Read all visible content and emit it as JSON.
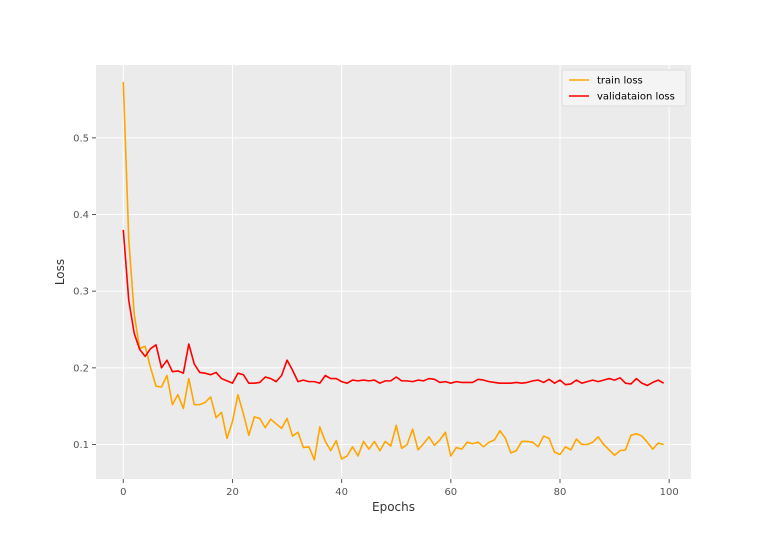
{
  "chart_data": {
    "type": "line",
    "title": "",
    "xlabel": "Epochs",
    "ylabel": "Loss",
    "xlim": [
      -5,
      104
    ],
    "ylim": [
      0.055,
      0.595
    ],
    "xticks": [
      0,
      20,
      40,
      60,
      80,
      100
    ],
    "xtick_labels": [
      "0",
      "20",
      "40",
      "60",
      "80",
      "100"
    ],
    "yticks": [
      0.1,
      0.2,
      0.3,
      0.4,
      0.5
    ],
    "ytick_labels": [
      "0.1",
      "0.2",
      "0.3",
      "0.4",
      "0.5"
    ],
    "grid": true,
    "legend_position": "top-right",
    "x": [
      0,
      1,
      2,
      3,
      4,
      5,
      6,
      7,
      8,
      9,
      10,
      11,
      12,
      13,
      14,
      15,
      16,
      17,
      18,
      19,
      20,
      21,
      22,
      23,
      24,
      25,
      26,
      27,
      28,
      29,
      30,
      31,
      32,
      33,
      34,
      35,
      36,
      37,
      38,
      39,
      40,
      41,
      42,
      43,
      44,
      45,
      46,
      47,
      48,
      49,
      50,
      51,
      52,
      53,
      54,
      55,
      56,
      57,
      58,
      59,
      60,
      61,
      62,
      63,
      64,
      65,
      66,
      67,
      68,
      69,
      70,
      71,
      72,
      73,
      74,
      75,
      76,
      77,
      78,
      79,
      80,
      81,
      82,
      83,
      84,
      85,
      86,
      87,
      88,
      89,
      90,
      91,
      92,
      93,
      94,
      95,
      96,
      97,
      98,
      99
    ],
    "series": [
      {
        "name": "train loss",
        "color": "#FFA500",
        "values": [
          0.573,
          0.368,
          0.27,
          0.225,
          0.228,
          0.2,
          0.176,
          0.175,
          0.19,
          0.152,
          0.165,
          0.147,
          0.186,
          0.152,
          0.152,
          0.155,
          0.162,
          0.135,
          0.142,
          0.108,
          0.13,
          0.165,
          0.14,
          0.112,
          0.136,
          0.134,
          0.122,
          0.133,
          0.127,
          0.121,
          0.134,
          0.111,
          0.116,
          0.096,
          0.097,
          0.08,
          0.123,
          0.104,
          0.092,
          0.105,
          0.081,
          0.085,
          0.097,
          0.085,
          0.104,
          0.094,
          0.104,
          0.092,
          0.104,
          0.098,
          0.125,
          0.095,
          0.1,
          0.12,
          0.093,
          0.101,
          0.11,
          0.099,
          0.106,
          0.116,
          0.085,
          0.096,
          0.094,
          0.103,
          0.101,
          0.103,
          0.097,
          0.103,
          0.106,
          0.118,
          0.108,
          0.089,
          0.092,
          0.104,
          0.104,
          0.103,
          0.097,
          0.111,
          0.108,
          0.09,
          0.087,
          0.097,
          0.093,
          0.107,
          0.1,
          0.1,
          0.103,
          0.11,
          0.1,
          0.093,
          0.086,
          0.092,
          0.093,
          0.112,
          0.114,
          0.111,
          0.103,
          0.094,
          0.102,
          0.1
        ]
      },
      {
        "name": "validataion loss",
        "color": "#FF0000",
        "values": [
          0.38,
          0.288,
          0.245,
          0.224,
          0.215,
          0.225,
          0.23,
          0.2,
          0.21,
          0.195,
          0.196,
          0.193,
          0.231,
          0.205,
          0.194,
          0.193,
          0.191,
          0.194,
          0.186,
          0.183,
          0.18,
          0.193,
          0.191,
          0.18,
          0.18,
          0.181,
          0.188,
          0.186,
          0.182,
          0.19,
          0.21,
          0.197,
          0.182,
          0.184,
          0.182,
          0.182,
          0.18,
          0.19,
          0.186,
          0.186,
          0.182,
          0.18,
          0.184,
          0.183,
          0.184,
          0.183,
          0.184,
          0.18,
          0.183,
          0.183,
          0.188,
          0.183,
          0.183,
          0.182,
          0.184,
          0.183,
          0.186,
          0.185,
          0.181,
          0.182,
          0.18,
          0.182,
          0.181,
          0.181,
          0.181,
          0.185,
          0.184,
          0.182,
          0.181,
          0.18,
          0.18,
          0.18,
          0.181,
          0.18,
          0.181,
          0.183,
          0.184,
          0.181,
          0.185,
          0.18,
          0.184,
          0.178,
          0.179,
          0.184,
          0.18,
          0.182,
          0.184,
          0.182,
          0.184,
          0.186,
          0.184,
          0.187,
          0.18,
          0.179,
          0.186,
          0.18,
          0.177,
          0.181,
          0.184,
          0.18
        ]
      }
    ]
  },
  "colors": {
    "plot_background": "#EBEBEB",
    "grid": "#FFFFFF"
  }
}
